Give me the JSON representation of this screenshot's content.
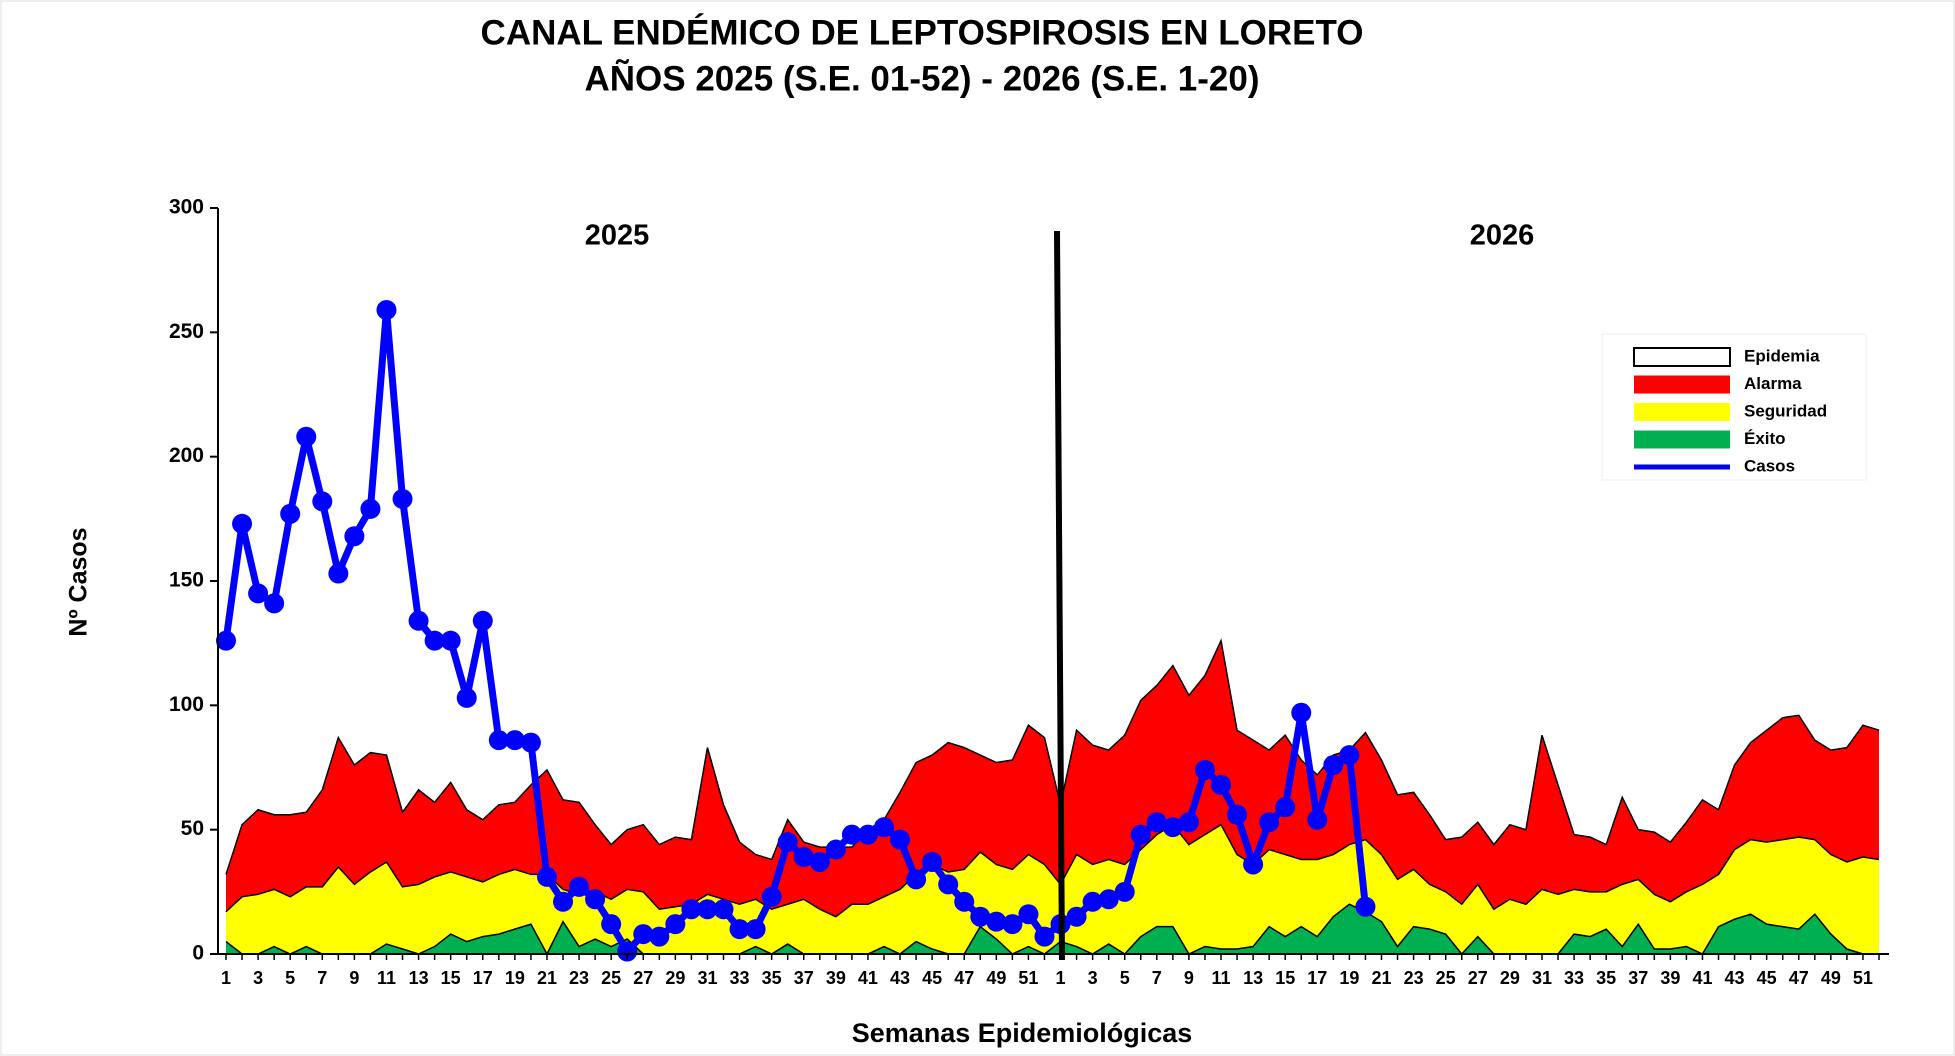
{
  "chart_data": {
    "type": "area",
    "title": "CANAL ENDÉMICO DE LEPTOSPIROSIS EN LORETO",
    "subtitle": "AÑOS 2025 (S.E. 01-52) - 2026 (S.E. 1-20)",
    "annotations": [
      "2025",
      "2026"
    ],
    "ylabel": "Nº Casos",
    "xlabel": "Semanas Epidemiológicas",
    "categories": [
      "1",
      null,
      "3",
      null,
      "5",
      null,
      "7",
      null,
      "9",
      null,
      "11",
      null,
      "13",
      null,
      "15",
      null,
      "17",
      null,
      "19",
      null,
      "21",
      null,
      "23",
      null,
      "25",
      null,
      "27",
      null,
      "29",
      null,
      "31",
      null,
      "33",
      null,
      "35",
      null,
      "37",
      null,
      "39",
      null,
      "41",
      null,
      "43",
      null,
      "45",
      null,
      "47",
      null,
      "49",
      null,
      "51",
      null,
      "1",
      null,
      "3",
      null,
      "5",
      null,
      "7",
      null,
      "9",
      null,
      "11",
      null,
      "13",
      null,
      "15",
      null,
      "17",
      null,
      "19",
      null,
      "21",
      null,
      "23",
      null,
      "25",
      null,
      "27",
      null,
      "29",
      null,
      "31",
      null,
      "33",
      null,
      "35",
      null,
      "37",
      null,
      "39",
      null,
      "41",
      null,
      "43",
      null,
      "45",
      null,
      "47",
      null,
      "49",
      null,
      "51",
      null
    ],
    "ylim": [
      0,
      300
    ],
    "yticks": [
      0,
      50,
      100,
      150,
      200,
      250,
      300
    ],
    "grid": false,
    "legend": "upper right",
    "series": [
      {
        "name": "Epidemia",
        "color": "#ffffff"
      },
      {
        "name": "Alarma",
        "color": "#ff0000",
        "type": "area",
        "values": [
          32,
          52,
          58,
          56,
          56,
          57,
          66,
          87,
          76,
          81,
          80,
          57,
          66,
          61,
          69,
          58,
          54,
          60,
          61,
          68,
          74,
          62,
          61,
          52,
          44,
          50,
          52,
          44,
          47,
          46,
          83,
          60,
          45,
          40,
          38,
          54,
          45,
          43,
          43,
          43,
          50,
          54,
          65,
          77,
          80,
          85,
          83,
          80,
          77,
          78,
          92,
          87,
          60,
          90,
          84,
          82,
          88,
          102,
          108,
          116,
          104,
          112,
          126,
          90,
          86,
          82,
          88,
          78,
          72,
          80,
          82,
          89,
          78,
          64,
          65,
          56,
          46,
          47,
          53,
          44,
          52,
          50,
          88,
          68,
          48,
          47,
          44,
          63,
          50,
          49,
          45,
          53,
          62,
          58,
          76,
          85,
          90,
          95,
          96,
          86,
          82,
          83,
          92,
          90
        ]
      },
      {
        "name": "Seguridad",
        "color": "#ffff00",
        "type": "area",
        "values": [
          17,
          23,
          24,
          26,
          23,
          27,
          27,
          35,
          28,
          33,
          37,
          27,
          28,
          31,
          33,
          31,
          29,
          32,
          34,
          32,
          32,
          26,
          24,
          25,
          22,
          26,
          25,
          18,
          19,
          20,
          24,
          22,
          20,
          22,
          18,
          20,
          22,
          18,
          15,
          20,
          20,
          23,
          26,
          32,
          36,
          33,
          34,
          41,
          36,
          34,
          40,
          36,
          28,
          40,
          36,
          38,
          36,
          42,
          48,
          52,
          44,
          48,
          52,
          40,
          36,
          42,
          40,
          38,
          38,
          40,
          44,
          46,
          40,
          30,
          34,
          28,
          25,
          20,
          28,
          18,
          22,
          20,
          26,
          24,
          26,
          25,
          25,
          28,
          30,
          24,
          21,
          25,
          28,
          32,
          42,
          46,
          45,
          46,
          47,
          46,
          40,
          37,
          39,
          38
        ]
      },
      {
        "name": "Éxito",
        "color": "#00b050",
        "type": "area",
        "values": [
          5,
          0,
          0,
          3,
          0,
          3,
          0,
          0,
          0,
          0,
          4,
          2,
          0,
          3,
          8,
          5,
          7,
          8,
          10,
          12,
          0,
          13,
          3,
          6,
          3,
          6,
          0,
          0,
          0,
          0,
          0,
          0,
          0,
          3,
          0,
          4,
          0,
          0,
          0,
          0,
          0,
          3,
          0,
          5,
          2,
          0,
          0,
          11,
          6,
          0,
          3,
          0,
          5,
          3,
          0,
          4,
          0,
          7,
          11,
          11,
          0,
          3,
          2,
          2,
          3,
          11,
          7,
          11,
          7,
          15,
          20,
          17,
          13,
          3,
          11,
          10,
          8,
          0,
          7,
          0,
          0,
          0,
          0,
          0,
          8,
          7,
          10,
          3,
          12,
          2,
          2,
          3,
          0,
          11,
          14,
          16,
          12,
          11,
          10,
          16,
          8,
          2,
          0,
          0
        ]
      },
      {
        "name": "Casos",
        "color": "#0000ff",
        "type": "line",
        "values": [
          126,
          173,
          145,
          141,
          177,
          208,
          182,
          153,
          168,
          179,
          259,
          183,
          134,
          126,
          126,
          103,
          134,
          86,
          86,
          85,
          31,
          21,
          27,
          22,
          12,
          1,
          8,
          7,
          12,
          18,
          18,
          18,
          10,
          10,
          23,
          45,
          39,
          37,
          42,
          48,
          48,
          51,
          46,
          30,
          37,
          28,
          21,
          15,
          13,
          12,
          16,
          7,
          12,
          15,
          21,
          22,
          25,
          48,
          53,
          51,
          53,
          74,
          68,
          56,
          36,
          53,
          59,
          97,
          54,
          76,
          80,
          19,
          null,
          null,
          null,
          null,
          null,
          null,
          null,
          null,
          null,
          null,
          null,
          null,
          null,
          null,
          null,
          null,
          null,
          null,
          null,
          null,
          null,
          null,
          null,
          null,
          null,
          null,
          null,
          null,
          null,
          null,
          null,
          null
        ]
      }
    ]
  }
}
